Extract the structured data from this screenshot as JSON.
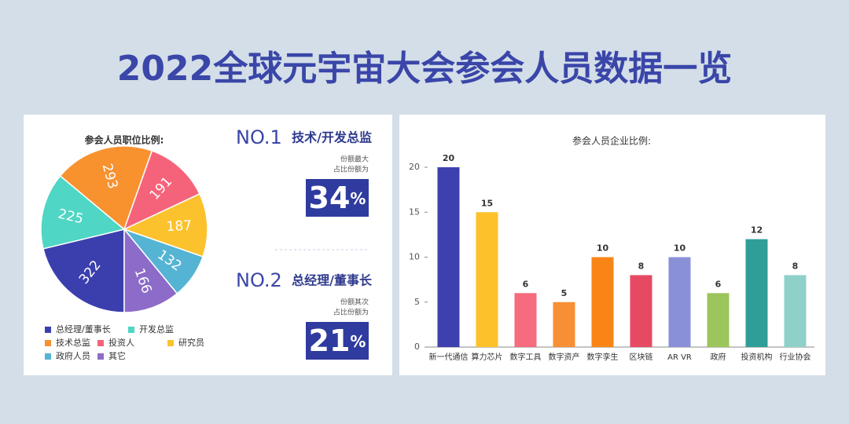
{
  "title": "2022全球元宇宙大会参会人员数据一览",
  "highlights": [
    {
      "rank": "NO.1",
      "name": "技术/开发总监",
      "note1": "份额最大",
      "note2": "占比份额为",
      "share": 34,
      "unit": "%"
    },
    {
      "rank": "NO.2",
      "name": "总经理/董事长",
      "note1": "份额其次",
      "note2": "占比份额为",
      "share": 21,
      "unit": "%"
    }
  ],
  "chart_data": [
    {
      "type": "pie",
      "title": "参会人员职位比例:",
      "categories": [
        "总经理/董事长",
        "开发总监",
        "技术总监",
        "投资人",
        "研究员",
        "政府人员",
        "其它"
      ],
      "values": [
        322,
        225,
        293,
        191,
        187,
        132,
        166
      ],
      "colors": [
        "#3b3fae",
        "#4fd6c4",
        "#f7922f",
        "#f5637a",
        "#fcc22d",
        "#55b4d4",
        "#8c6cc8"
      ]
    },
    {
      "type": "bar",
      "title": "参会人员企业比例:",
      "categories": [
        "新一代通信",
        "算力芯片",
        "数字工具",
        "数字资产",
        "数字孪生",
        "区块链",
        "AR  VR",
        "政府",
        "投资机构",
        "行业协会"
      ],
      "values": [
        20,
        15,
        6,
        5,
        10,
        8,
        10,
        6,
        12,
        8
      ],
      "colors": [
        "#3d40ae",
        "#fcc12b",
        "#f66b7e",
        "#f98f34",
        "#f98516",
        "#e64a62",
        "#8a90d8",
        "#9cc55c",
        "#2f9e99",
        "#8fd1c9"
      ],
      "ylim": [
        0,
        20
      ],
      "yticks": [
        0,
        5,
        10,
        15,
        20
      ]
    }
  ]
}
